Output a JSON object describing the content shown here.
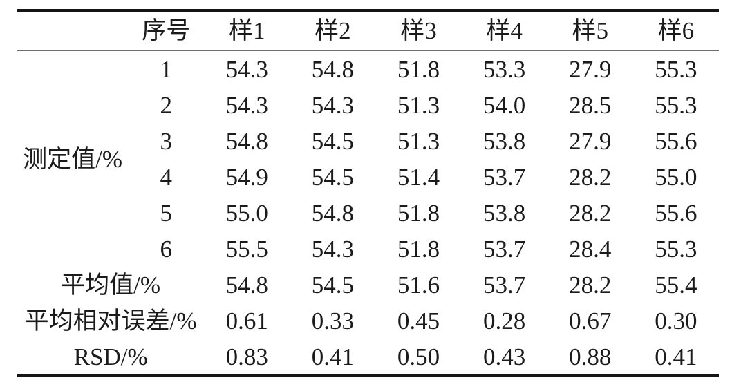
{
  "table": {
    "columns": [
      "",
      "序号",
      "样1",
      "样2",
      "样3",
      "样4",
      "样5",
      "样6"
    ],
    "group_label": "测定值/%",
    "measurement_rows": [
      {
        "index": "1",
        "values": [
          "54.3",
          "54.8",
          "51.8",
          "53.3",
          "27.9",
          "55.3"
        ]
      },
      {
        "index": "2",
        "values": [
          "54.3",
          "54.3",
          "51.3",
          "54.0",
          "28.5",
          "55.3"
        ]
      },
      {
        "index": "3",
        "values": [
          "54.8",
          "54.5",
          "51.3",
          "53.8",
          "27.9",
          "55.6"
        ]
      },
      {
        "index": "4",
        "values": [
          "54.9",
          "54.5",
          "51.4",
          "53.7",
          "28.2",
          "55.0"
        ]
      },
      {
        "index": "5",
        "values": [
          "55.0",
          "54.8",
          "51.8",
          "53.8",
          "28.2",
          "55.6"
        ]
      },
      {
        "index": "6",
        "values": [
          "55.5",
          "54.3",
          "51.8",
          "53.7",
          "28.4",
          "55.3"
        ]
      }
    ],
    "summary_rows": [
      {
        "label": "平均值/%",
        "values": [
          "54.8",
          "54.5",
          "51.6",
          "53.7",
          "28.2",
          "55.4"
        ]
      },
      {
        "label": "平均相对误差/%",
        "values": [
          "0.61",
          "0.33",
          "0.45",
          "0.28",
          "0.67",
          "0.30"
        ]
      },
      {
        "label": "RSD/%",
        "values": [
          "0.83",
          "0.41",
          "0.50",
          "0.43",
          "0.88",
          "0.41"
        ]
      }
    ]
  }
}
